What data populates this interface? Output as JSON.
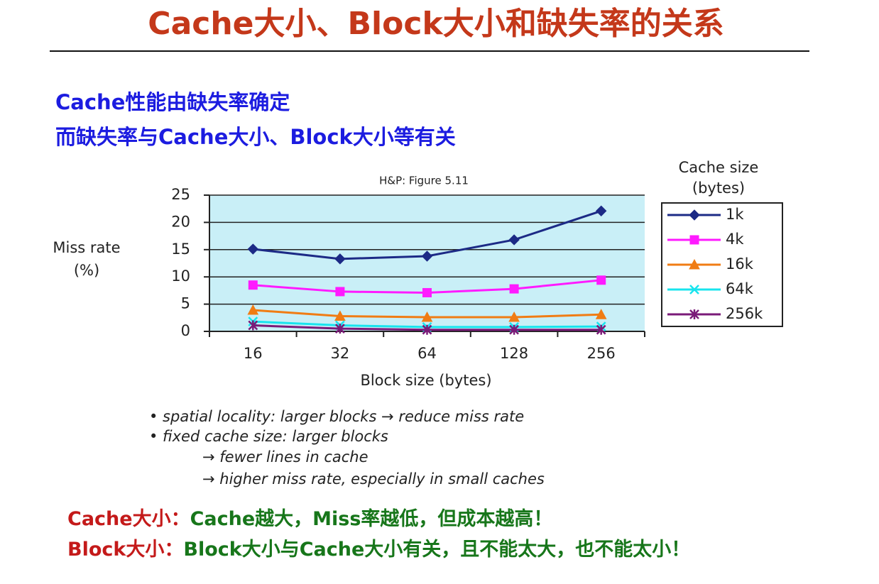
{
  "header": {
    "title": "Cache大小、Block大小和缺失率的关系"
  },
  "intro": [
    "Cache性能由缺失率确定",
    "而缺失率与Cache大小、Block大小等有关"
  ],
  "chart_data": {
    "type": "line",
    "title": "H&P: Figure 5.11",
    "y_label": [
      "Miss rate",
      "(%)"
    ],
    "x_label": "Block size (bytes)",
    "legend_title": [
      "Cache size",
      "(bytes)"
    ],
    "legend": "right",
    "categories": [
      "16",
      "32",
      "64",
      "128",
      "256"
    ],
    "ylim": [
      0,
      25
    ],
    "yticks": [
      0,
      5,
      10,
      15,
      20,
      25
    ],
    "grid": true,
    "series": [
      {
        "name": "1k",
        "color": "#1c2a86",
        "marker": "diamond",
        "values": [
          15.1,
          13.3,
          13.8,
          16.8,
          22.1
        ]
      },
      {
        "name": "4k",
        "color": "#ff1aff",
        "marker": "square",
        "values": [
          8.5,
          7.3,
          7.1,
          7.8,
          9.4
        ]
      },
      {
        "name": "16k",
        "color": "#f07c14",
        "marker": "triangle",
        "values": [
          3.9,
          2.8,
          2.6,
          2.6,
          3.1
        ]
      },
      {
        "name": "64k",
        "color": "#18e4ee",
        "marker": "x",
        "values": [
          1.8,
          1.1,
          0.8,
          0.8,
          0.9
        ]
      },
      {
        "name": "256k",
        "color": "#7a1a78",
        "marker": "star",
        "values": [
          1.1,
          0.5,
          0.3,
          0.3,
          0.3
        ]
      }
    ]
  },
  "notes": [
    "• spatial locality: larger blocks → reduce miss rate",
    "• fixed cache size: larger blocks",
    "→ fewer lines in cache",
    "→ higher miss rate, especially in small caches"
  ],
  "conclusions": [
    {
      "label": "Cache大小：",
      "text": "Cache越大，Miss率越低，但成本越高！"
    },
    {
      "label": "Block大小：",
      "text": "Block大小与Cache大小有关，且不能太大，也不能太小！"
    }
  ]
}
